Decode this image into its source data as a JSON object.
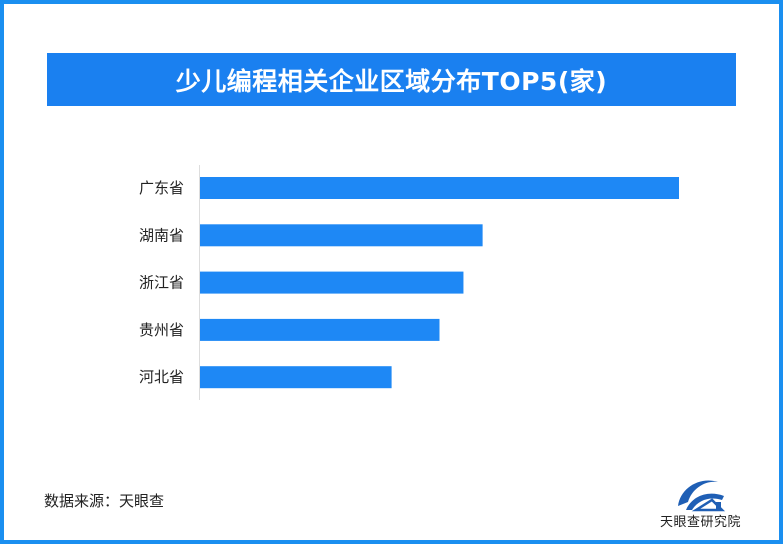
{
  "chart_data": {
    "type": "bar",
    "orientation": "horizontal",
    "title": "少儿编程相关企业区域分布TOP5(家)",
    "categories": [
      "广东省",
      "湖南省",
      "浙江省",
      "贵州省",
      "河北省"
    ],
    "values": [
      100,
      59,
      55,
      50,
      40
    ],
    "value_note_relative": true,
    "xlabel": "",
    "ylabel": "",
    "grid": false,
    "bar_color": "#1e88f5"
  },
  "footer": {
    "source": "数据来源：天眼查",
    "logo_text": "天眼查研究院"
  },
  "colors": {
    "frame": "#1a8ff0",
    "banner": "#1a80f0"
  }
}
